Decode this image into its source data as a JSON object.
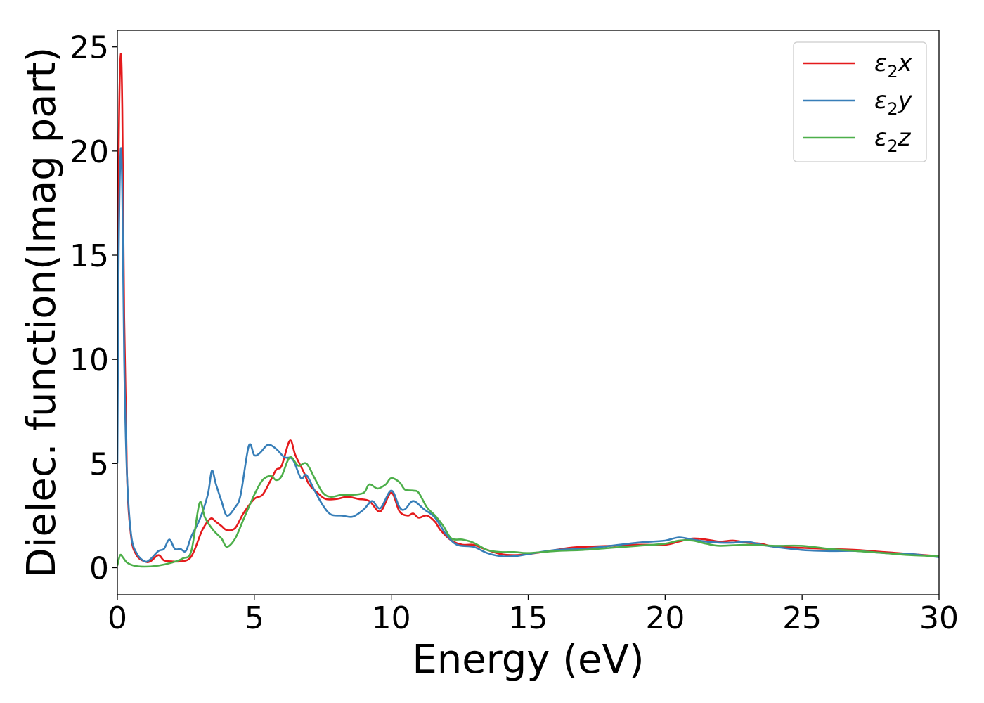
{
  "chart_data": {
    "type": "line",
    "xlabel": "Energy (eV)",
    "ylabel": "Dielec. function(Imag part)",
    "xlim": [
      0,
      30
    ],
    "ylim": [
      -1.3,
      25.8
    ],
    "xticks": [
      "0",
      "5",
      "10",
      "15",
      "20",
      "25",
      "30"
    ],
    "xtick_values": [
      0,
      5,
      10,
      15,
      20,
      25,
      30
    ],
    "yticks": [
      "0",
      "5",
      "10",
      "15",
      "20",
      "25"
    ],
    "ytick_values": [
      0,
      5,
      10,
      15,
      20,
      25
    ],
    "grid": false,
    "legend_position": "top-right",
    "series": [
      {
        "name": "ε2x",
        "legend_base": "ε",
        "legend_sub": "2",
        "legend_var": "x",
        "color": "#e41a1c",
        "points": [
          [
            0,
            8
          ],
          [
            0.05,
            20
          ],
          [
            0.12,
            24.6
          ],
          [
            0.18,
            22
          ],
          [
            0.25,
            12
          ],
          [
            0.35,
            4.5
          ],
          [
            0.5,
            1.5
          ],
          [
            0.7,
            0.6
          ],
          [
            1.0,
            0.3
          ],
          [
            1.2,
            0.3
          ],
          [
            1.5,
            0.6
          ],
          [
            1.7,
            0.35
          ],
          [
            2.0,
            0.3
          ],
          [
            2.3,
            0.3
          ],
          [
            2.6,
            0.4
          ],
          [
            2.8,
            0.8
          ],
          [
            3.1,
            1.8
          ],
          [
            3.4,
            2.35
          ],
          [
            3.6,
            2.2
          ],
          [
            3.8,
            2.0
          ],
          [
            4.0,
            1.8
          ],
          [
            4.3,
            1.9
          ],
          [
            4.6,
            2.6
          ],
          [
            5.0,
            3.3
          ],
          [
            5.3,
            3.5
          ],
          [
            5.6,
            4.2
          ],
          [
            5.8,
            4.7
          ],
          [
            6.0,
            4.9
          ],
          [
            6.3,
            6.1
          ],
          [
            6.5,
            5.4
          ],
          [
            6.8,
            4.6
          ],
          [
            7.0,
            4.0
          ],
          [
            7.3,
            3.6
          ],
          [
            7.6,
            3.3
          ],
          [
            8.0,
            3.3
          ],
          [
            8.4,
            3.4
          ],
          [
            8.8,
            3.3
          ],
          [
            9.2,
            3.2
          ],
          [
            9.6,
            2.7
          ],
          [
            10.0,
            3.6
          ],
          [
            10.3,
            2.7
          ],
          [
            10.6,
            2.5
          ],
          [
            10.8,
            2.6
          ],
          [
            11.0,
            2.4
          ],
          [
            11.3,
            2.5
          ],
          [
            11.6,
            2.2
          ],
          [
            11.8,
            1.8
          ],
          [
            12.2,
            1.3
          ],
          [
            12.6,
            1.1
          ],
          [
            13.0,
            1.1
          ],
          [
            13.4,
            0.9
          ],
          [
            14.0,
            0.65
          ],
          [
            14.5,
            0.6
          ],
          [
            15.0,
            0.65
          ],
          [
            16.0,
            0.85
          ],
          [
            16.5,
            0.95
          ],
          [
            17.0,
            1.0
          ],
          [
            18.0,
            1.05
          ],
          [
            19.0,
            1.1
          ],
          [
            20.0,
            1.1
          ],
          [
            20.5,
            1.25
          ],
          [
            21.0,
            1.4
          ],
          [
            21.5,
            1.35
          ],
          [
            22.0,
            1.25
          ],
          [
            22.5,
            1.3
          ],
          [
            23.0,
            1.2
          ],
          [
            23.5,
            1.15
          ],
          [
            24.0,
            1.0
          ],
          [
            25.0,
            0.95
          ],
          [
            26.0,
            0.9
          ],
          [
            27.0,
            0.85
          ],
          [
            28.0,
            0.75
          ],
          [
            29.0,
            0.65
          ],
          [
            30.0,
            0.55
          ]
        ]
      },
      {
        "name": "ε2y",
        "legend_base": "ε",
        "legend_sub": "2",
        "legend_var": "y",
        "color": "#377eb8",
        "points": [
          [
            0,
            5
          ],
          [
            0.05,
            15
          ],
          [
            0.12,
            20
          ],
          [
            0.18,
            18
          ],
          [
            0.25,
            10
          ],
          [
            0.35,
            4.5
          ],
          [
            0.5,
            1.6
          ],
          [
            0.7,
            0.7
          ],
          [
            1.0,
            0.3
          ],
          [
            1.2,
            0.4
          ],
          [
            1.5,
            0.8
          ],
          [
            1.7,
            0.9
          ],
          [
            1.9,
            1.35
          ],
          [
            2.1,
            0.9
          ],
          [
            2.3,
            0.9
          ],
          [
            2.5,
            0.8
          ],
          [
            2.7,
            1.5
          ],
          [
            3.0,
            2.3
          ],
          [
            3.3,
            3.5
          ],
          [
            3.45,
            4.65
          ],
          [
            3.6,
            4.0
          ],
          [
            3.8,
            3.2
          ],
          [
            4.0,
            2.5
          ],
          [
            4.3,
            2.9
          ],
          [
            4.5,
            3.5
          ],
          [
            4.8,
            5.85
          ],
          [
            5.0,
            5.4
          ],
          [
            5.2,
            5.5
          ],
          [
            5.5,
            5.9
          ],
          [
            5.8,
            5.7
          ],
          [
            6.1,
            5.3
          ],
          [
            6.4,
            5.2
          ],
          [
            6.7,
            4.3
          ],
          [
            6.9,
            4.45
          ],
          [
            7.2,
            3.7
          ],
          [
            7.5,
            3.0
          ],
          [
            7.8,
            2.55
          ],
          [
            8.2,
            2.5
          ],
          [
            8.6,
            2.45
          ],
          [
            9.0,
            2.8
          ],
          [
            9.3,
            3.2
          ],
          [
            9.6,
            2.85
          ],
          [
            10.0,
            3.7
          ],
          [
            10.3,
            2.9
          ],
          [
            10.5,
            2.8
          ],
          [
            10.8,
            3.2
          ],
          [
            11.2,
            2.8
          ],
          [
            11.6,
            2.4
          ],
          [
            12.0,
            1.6
          ],
          [
            12.4,
            1.1
          ],
          [
            13.0,
            1.0
          ],
          [
            13.5,
            0.7
          ],
          [
            14.0,
            0.55
          ],
          [
            14.5,
            0.55
          ],
          [
            15.0,
            0.65
          ],
          [
            16.0,
            0.85
          ],
          [
            17.0,
            0.9
          ],
          [
            18.0,
            1.05
          ],
          [
            19.0,
            1.2
          ],
          [
            19.5,
            1.25
          ],
          [
            20.0,
            1.3
          ],
          [
            20.5,
            1.45
          ],
          [
            21.0,
            1.35
          ],
          [
            21.5,
            1.25
          ],
          [
            22.0,
            1.2
          ],
          [
            22.5,
            1.2
          ],
          [
            23.0,
            1.25
          ],
          [
            23.5,
            1.1
          ],
          [
            24.0,
            1.0
          ],
          [
            25.0,
            0.85
          ],
          [
            26.0,
            0.8
          ],
          [
            27.0,
            0.8
          ],
          [
            28.0,
            0.7
          ],
          [
            29.0,
            0.65
          ],
          [
            30.0,
            0.5
          ]
        ]
      },
      {
        "name": "ε2z",
        "legend_base": "ε",
        "legend_sub": "2",
        "legend_var": "z",
        "color": "#4daf4a",
        "points": [
          [
            0,
            0.1
          ],
          [
            0.1,
            0.6
          ],
          [
            0.2,
            0.5
          ],
          [
            0.35,
            0.25
          ],
          [
            0.6,
            0.1
          ],
          [
            1.0,
            0.05
          ],
          [
            1.5,
            0.1
          ],
          [
            2.0,
            0.25
          ],
          [
            2.4,
            0.45
          ],
          [
            2.7,
            0.8
          ],
          [
            3.0,
            3.1
          ],
          [
            3.2,
            2.4
          ],
          [
            3.5,
            1.8
          ],
          [
            3.8,
            1.4
          ],
          [
            4.0,
            1.0
          ],
          [
            4.3,
            1.4
          ],
          [
            4.6,
            2.3
          ],
          [
            5.0,
            3.5
          ],
          [
            5.3,
            4.2
          ],
          [
            5.6,
            4.4
          ],
          [
            5.8,
            4.2
          ],
          [
            6.0,
            4.4
          ],
          [
            6.3,
            5.3
          ],
          [
            6.6,
            4.9
          ],
          [
            6.9,
            5.0
          ],
          [
            7.2,
            4.3
          ],
          [
            7.5,
            3.6
          ],
          [
            7.8,
            3.4
          ],
          [
            8.2,
            3.5
          ],
          [
            8.6,
            3.5
          ],
          [
            9.0,
            3.6
          ],
          [
            9.2,
            4.0
          ],
          [
            9.5,
            3.8
          ],
          [
            9.8,
            4.0
          ],
          [
            10.0,
            4.3
          ],
          [
            10.3,
            4.1
          ],
          [
            10.5,
            3.75
          ],
          [
            10.8,
            3.7
          ],
          [
            11.0,
            3.6
          ],
          [
            11.3,
            2.9
          ],
          [
            11.6,
            2.5
          ],
          [
            11.9,
            2.0
          ],
          [
            12.2,
            1.4
          ],
          [
            12.6,
            1.35
          ],
          [
            13.0,
            1.2
          ],
          [
            13.5,
            0.85
          ],
          [
            14.0,
            0.75
          ],
          [
            14.5,
            0.75
          ],
          [
            15.0,
            0.7
          ],
          [
            16.0,
            0.8
          ],
          [
            17.0,
            0.85
          ],
          [
            18.0,
            0.95
          ],
          [
            19.0,
            1.05
          ],
          [
            20.0,
            1.15
          ],
          [
            20.5,
            1.3
          ],
          [
            21.0,
            1.3
          ],
          [
            21.5,
            1.15
          ],
          [
            22.0,
            1.05
          ],
          [
            23.0,
            1.1
          ],
          [
            24.0,
            1.05
          ],
          [
            25.0,
            1.05
          ],
          [
            26.0,
            0.9
          ],
          [
            27.0,
            0.8
          ],
          [
            28.0,
            0.7
          ],
          [
            29.0,
            0.6
          ],
          [
            30.0,
            0.55
          ]
        ]
      }
    ]
  }
}
